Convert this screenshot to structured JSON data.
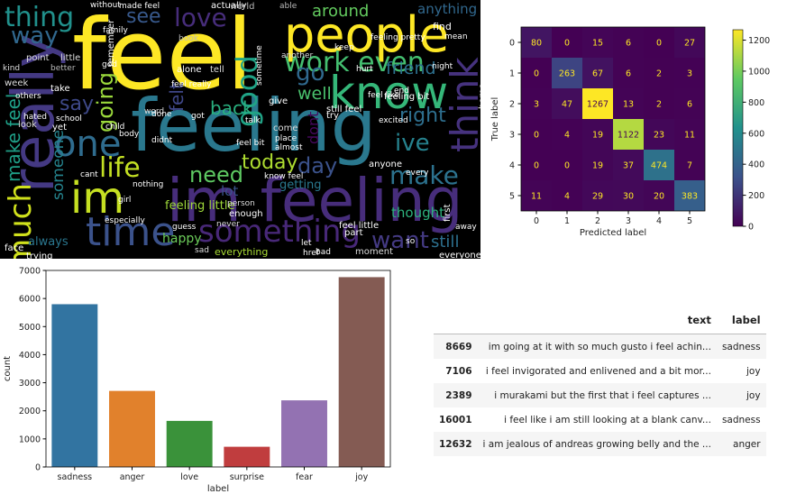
{
  "wordcloud": {
    "words": [
      {
        "text": "feel",
        "color": "#fde725"
      },
      {
        "text": "feeling",
        "color": "#2a788e"
      },
      {
        "text": "im feeling",
        "color": "#472d7b"
      },
      {
        "text": "people",
        "color": "#fde725"
      },
      {
        "text": "know",
        "color": "#35b779"
      },
      {
        "text": "im",
        "color": "#c6e022"
      },
      {
        "text": "really",
        "color": "#443983"
      },
      {
        "text": "time",
        "color": "#3b528b"
      },
      {
        "text": "one",
        "color": "#2f6c8e"
      },
      {
        "text": "think",
        "color": "#46327e"
      },
      {
        "text": "thing",
        "color": "#21918c"
      },
      {
        "text": "love",
        "color": "#472d7b"
      },
      {
        "text": "work even",
        "color": "#44bf70"
      },
      {
        "text": "something",
        "color": "#482878"
      },
      {
        "text": "life",
        "color": "#c2df23"
      },
      {
        "text": "need",
        "color": "#5ec962"
      },
      {
        "text": "today",
        "color": "#addc30"
      },
      {
        "text": "day",
        "color": "#3b528b"
      },
      {
        "text": "make",
        "color": "#2c728e"
      },
      {
        "text": "want",
        "color": "#443a83"
      },
      {
        "text": "ive",
        "color": "#26828e"
      },
      {
        "text": "right",
        "color": "#2e6f8e"
      },
      {
        "text": "go",
        "color": "#30698e"
      },
      {
        "text": "way",
        "color": "#31688e"
      },
      {
        "text": "much",
        "color": "#d0e11c"
      },
      {
        "text": "see",
        "color": "#38598c"
      },
      {
        "text": "good",
        "color": "#20a386"
      },
      {
        "text": "going",
        "color": "#9bd93c"
      },
      {
        "text": "say",
        "color": "#3e4989"
      },
      {
        "text": "back",
        "color": "#2ab07f"
      },
      {
        "text": "still",
        "color": "#2d708e"
      },
      {
        "text": "friend",
        "color": "#2d708e"
      },
      {
        "text": "around",
        "color": "#63cb5f"
      },
      {
        "text": "make feel",
        "color": "#1fa088"
      },
      {
        "text": "happy",
        "color": "#6ccd5a"
      },
      {
        "text": "thought",
        "color": "#2db27d"
      },
      {
        "text": "always",
        "color": "#2a768e"
      },
      {
        "text": "someone",
        "color": "#25848e"
      },
      {
        "text": "well",
        "color": "#4ac16d"
      },
      {
        "text": "dont",
        "color": "#46085c"
      },
      {
        "text": "anything",
        "color": "#31688e"
      },
      {
        "text": "feeling little",
        "color": "#9fda3a"
      },
      {
        "text": "everything",
        "color": "#a8db34"
      },
      {
        "text": "felt",
        "color": "#3f4788"
      },
      {
        "text": "lot",
        "color": "#3b528b"
      },
      {
        "text": "getting",
        "color": "#2a788e"
      },
      {
        "text": "actually",
        "color": "#ffffff"
      },
      {
        "text": "find",
        "color": "#ffffff"
      },
      {
        "text": "world",
        "color": "#b8b8b8"
      },
      {
        "text": "without",
        "color": "#ffffff"
      },
      {
        "text": "made feel",
        "color": "#ffffff"
      },
      {
        "text": "family",
        "color": "#ffffff"
      },
      {
        "text": "book",
        "color": "#bbbbbb"
      },
      {
        "text": "able",
        "color": "#bbbbbb"
      },
      {
        "text": "alone",
        "color": "#ffffff"
      },
      {
        "text": "tell",
        "color": "#dddddd"
      },
      {
        "text": "give",
        "color": "#ffffff"
      },
      {
        "text": "still feel",
        "color": "#ffffff"
      },
      {
        "text": "feel bit",
        "color": "#ffffff"
      },
      {
        "text": "come",
        "color": "#dddddd"
      },
      {
        "text": "place",
        "color": "#ffffff"
      },
      {
        "text": "almost",
        "color": "#ffffff"
      },
      {
        "text": "know feel",
        "color": "#ffffff"
      },
      {
        "text": "person",
        "color": "#dddddd"
      },
      {
        "text": "enough",
        "color": "#ffffff"
      },
      {
        "text": "never",
        "color": "#dddddd"
      },
      {
        "text": "guess",
        "color": "#ffffff"
      },
      {
        "text": "feel really",
        "color": "#ffffff"
      },
      {
        "text": "feel little",
        "color": "#ffffff"
      },
      {
        "text": "href",
        "color": "#ffffff"
      },
      {
        "text": "moment",
        "color": "#dddddd"
      },
      {
        "text": "nothing",
        "color": "#ffffff"
      },
      {
        "text": "cant",
        "color": "#ffffff"
      },
      {
        "text": "word",
        "color": "#dddddd"
      },
      {
        "text": "point",
        "color": "#dddddd"
      },
      {
        "text": "little",
        "color": "#dddddd"
      },
      {
        "text": "better",
        "color": "#bbbbbb"
      },
      {
        "text": "kind",
        "color": "#dddddd"
      },
      {
        "text": "week",
        "color": "#dddddd"
      },
      {
        "text": "others",
        "color": "#ffffff"
      },
      {
        "text": "take",
        "color": "#ffffff"
      },
      {
        "text": "hated",
        "color": "#ffffff"
      },
      {
        "text": "school",
        "color": "#ffffff"
      },
      {
        "text": "look",
        "color": "#dddddd"
      },
      {
        "text": "yet",
        "color": "#ffffff"
      },
      {
        "text": "child",
        "color": "#ffffff"
      },
      {
        "text": "done",
        "color": "#ffffff"
      },
      {
        "text": "body",
        "color": "#ffffff"
      },
      {
        "text": "talk",
        "color": "#ffffff"
      },
      {
        "text": "girl",
        "color": "#ffffff"
      },
      {
        "text": "sad",
        "color": "#dddddd"
      },
      {
        "text": "face",
        "color": "#ffffff"
      },
      {
        "text": "trying",
        "color": "#ffffff"
      },
      {
        "text": "excited",
        "color": "#ffffff"
      },
      {
        "text": "hurt",
        "color": "#ffffff"
      },
      {
        "text": "night",
        "color": "#ffffff"
      },
      {
        "text": "end",
        "color": "#ffffff"
      },
      {
        "text": "part",
        "color": "#ffffff"
      },
      {
        "text": "every",
        "color": "#ffffff"
      },
      {
        "text": "first",
        "color": "#ffffff"
      },
      {
        "text": "away",
        "color": "#ffffff"
      },
      {
        "text": "everyone",
        "color": "#ffffff"
      },
      {
        "text": "mean",
        "color": "#ffffff"
      },
      {
        "text": "another",
        "color": "#dddddd"
      },
      {
        "text": "sometime",
        "color": "#ffffff"
      },
      {
        "text": "anyone",
        "color": "#ffffff"
      },
      {
        "text": "especially",
        "color": "#ffffff"
      },
      {
        "text": "try",
        "color": "#ffffff"
      },
      {
        "text": "didnt",
        "color": "#ffffff"
      },
      {
        "text": "remember",
        "color": "#ffffff"
      },
      {
        "text": "home",
        "color": "#ffffff"
      },
      {
        "text": "feeling pretty",
        "color": "#ffffff"
      },
      {
        "text": "feeling bit",
        "color": "#ffffff"
      },
      {
        "text": "so",
        "color": "#ffffff"
      },
      {
        "text": "bad",
        "color": "#ffffff"
      },
      {
        "text": "god",
        "color": "#ffffff"
      },
      {
        "text": "got",
        "color": "#ffffff"
      },
      {
        "text": "let",
        "color": "#ffffff"
      },
      {
        "text": "keep",
        "color": "#ffffff"
      },
      {
        "text": "feel like",
        "color": "#ffffff"
      }
    ]
  },
  "confusion_matrix": {
    "colors": {
      "low": "#440154",
      "mid": "#21918c",
      "high": "#fde725",
      "text_dark": "#fde725",
      "text_light": "#440154"
    },
    "chart_data": {
      "type": "heatmap",
      "title": "",
      "xlabel": "Predicted label",
      "ylabel": "True label",
      "x_categories": [
        "0",
        "1",
        "2",
        "3",
        "4",
        "5"
      ],
      "y_categories": [
        "0",
        "1",
        "2",
        "3",
        "4",
        "5"
      ],
      "matrix": [
        [
          80,
          0,
          15,
          6,
          0,
          27
        ],
        [
          0,
          263,
          67,
          6,
          2,
          3
        ],
        [
          3,
          47,
          1267,
          13,
          2,
          6
        ],
        [
          0,
          4,
          19,
          1122,
          23,
          11
        ],
        [
          0,
          0,
          19,
          37,
          474,
          7
        ],
        [
          11,
          4,
          29,
          30,
          20,
          383
        ]
      ],
      "colorbar_ticks": [
        "0",
        "200",
        "400",
        "600",
        "800",
        "1000",
        "1200"
      ],
      "colorbar_range": [
        0,
        1267
      ]
    }
  },
  "bar_chart": {
    "chart_data": {
      "type": "bar",
      "title": "",
      "xlabel": "label",
      "ylabel": "count",
      "categories": [
        "sadness",
        "anger",
        "love",
        "surprise",
        "fear",
        "joy"
      ],
      "values": [
        5797,
        2709,
        1641,
        719,
        2373,
        6761
      ],
      "colors": [
        "#3274a1",
        "#e1812c",
        "#3a923a",
        "#c03d3e",
        "#9372b2",
        "#845b53"
      ],
      "ylim": [
        0,
        7000
      ],
      "yticks": [
        "0",
        "1000",
        "2000",
        "3000",
        "4000",
        "5000",
        "6000",
        "7000"
      ]
    }
  },
  "table": {
    "columns": [
      "",
      "text",
      "label"
    ],
    "rows": [
      {
        "index": "8669",
        "text": "im going at it with so much gusto i feel achin...",
        "label": "sadness"
      },
      {
        "index": "7106",
        "text": "i feel invigorated and enlivened and a bit mor...",
        "label": "joy"
      },
      {
        "index": "2389",
        "text": "i murakami but the first that i feel captures ...",
        "label": "joy"
      },
      {
        "index": "16001",
        "text": "i feel like i am still looking at a blank canv...",
        "label": "sadness"
      },
      {
        "index": "12632",
        "text": "i am jealous of andreas growing belly and the ...",
        "label": "anger"
      }
    ]
  }
}
